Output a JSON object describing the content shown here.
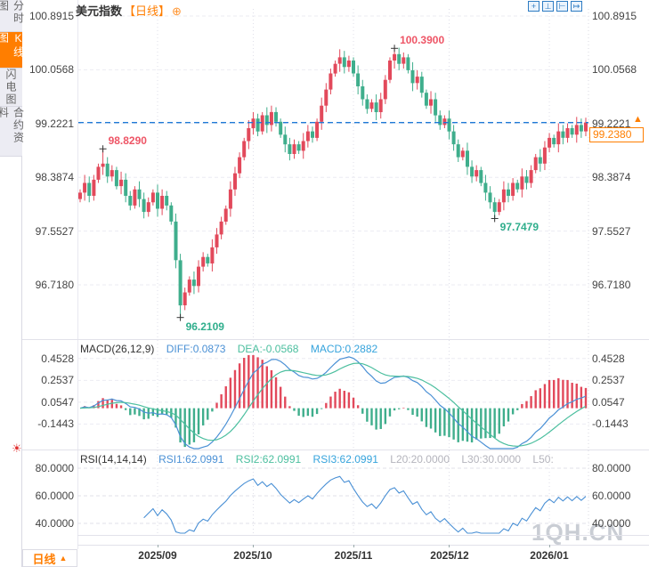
{
  "sidebar": {
    "items": [
      {
        "label": "分时图",
        "selected": false
      },
      {
        "label": "K线图",
        "selected": true
      },
      {
        "label": "闪电图",
        "selected": false
      },
      {
        "label": "合约资料",
        "selected": false
      }
    ]
  },
  "header": {
    "symbol": "美元指数",
    "timeframe_tag": "【日线】",
    "plus_icon": "⊕",
    "toolbar_icons": [
      {
        "name": "crosshair-icon",
        "glyph": "+"
      },
      {
        "name": "axis-scale-icon",
        "glyph": "⊥"
      },
      {
        "name": "indicator-panel-icon",
        "glyph": "⊢"
      },
      {
        "name": "exit-icon",
        "glyph": "↦"
      }
    ]
  },
  "price_axis": {
    "labels": [
      "100.8915",
      "100.0568",
      "99.2221",
      "98.3874",
      "97.5527",
      "96.7180"
    ]
  },
  "current_price": {
    "boxed_value": "99.2380",
    "arrow": "▲"
  },
  "macd": {
    "title": "MACD(26,12,9)",
    "diff_label": "DIFF:0.0873",
    "dea_label": "DEA:-0.0568",
    "macd_label": "MACD:0.2882",
    "axis_labels": [
      "0.4528",
      "0.2537",
      "0.0547",
      "-0.1443"
    ]
  },
  "rsi": {
    "title": "RSI(14,14,14)",
    "rsi1_label": "RSI1:62.0991",
    "rsi2_label": "RSI2:62.0991",
    "rsi3_label": "RSI3:62.0991",
    "l20_label": "L20:20.0000",
    "l30_label": "L30:30.0000",
    "l50_label": "L50:",
    "axis_labels": [
      "80.0000",
      "60.0000",
      "40.0000"
    ]
  },
  "x_axis": {
    "labels": [
      "2025/09",
      "2025/10",
      "2025/11",
      "2025/12",
      "2026/01"
    ]
  },
  "footer": {
    "timeframe": "日线",
    "caret": "▲"
  },
  "watermark": "1QH.CN",
  "colors": {
    "up": "#e2495b",
    "down": "#3fae8c",
    "accent_orange": "#ff7e00",
    "dashed_price_line": "#1f7ad6",
    "diff_line": "#4a90d5",
    "dea_line": "#4cbf9f",
    "annotation_high": "#ee5566",
    "annotation_low": "#2fae8c"
  },
  "chart_data": {
    "type": "candlestick",
    "symbol": "美元指数",
    "interval": "日线",
    "price_panel": {
      "ylim": [
        95.89,
        101.0
      ],
      "grid_values": [
        100.8915,
        100.0568,
        99.2221,
        98.3874,
        97.5527,
        96.718
      ],
      "current_price": 99.238,
      "first_open": 98.05,
      "closes": [
        98.15,
        98.3,
        98.1,
        98.35,
        98.55,
        98.6,
        98.4,
        98.5,
        98.25,
        98.35,
        98.1,
        97.95,
        98.2,
        98.05,
        97.85,
        98.0,
        98.15,
        97.9,
        98.1,
        97.95,
        97.7,
        97.1,
        96.4,
        96.6,
        96.8,
        96.7,
        97.0,
        97.15,
        97.05,
        97.3,
        97.5,
        97.7,
        97.9,
        98.2,
        98.45,
        98.7,
        98.95,
        99.15,
        99.3,
        99.1,
        99.35,
        99.2,
        99.4,
        99.25,
        99.05,
        98.9,
        98.75,
        98.9,
        98.8,
        98.95,
        99.1,
        99.0,
        99.25,
        99.5,
        99.75,
        100.0,
        100.15,
        100.25,
        100.1,
        100.2,
        100.0,
        99.8,
        99.6,
        99.45,
        99.55,
        99.4,
        99.6,
        99.9,
        100.2,
        100.3,
        100.15,
        100.25,
        100.05,
        99.85,
        99.95,
        99.7,
        99.5,
        99.6,
        99.35,
        99.2,
        99.3,
        99.1,
        98.9,
        98.7,
        98.8,
        98.55,
        98.4,
        98.5,
        98.3,
        98.15,
        98.0,
        97.85,
        98.0,
        98.2,
        98.1,
        98.3,
        98.2,
        98.4,
        98.3,
        98.5,
        98.7,
        98.6,
        98.85,
        99.0,
        98.9,
        99.1,
        99.0,
        99.15,
        99.05,
        99.2,
        99.1,
        99.238
      ],
      "overrides": {
        "5": {
          "high": 98.829
        },
        "22": {
          "low": 96.2109
        },
        "69": {
          "high": 100.39
        },
        "91": {
          "low": 97.7479
        }
      },
      "marked_points": [
        {
          "index": 5,
          "type": "high",
          "value": 98.829,
          "label": "98.8290"
        },
        {
          "index": 69,
          "type": "high",
          "value": 100.39,
          "label": "100.3900"
        },
        {
          "index": 22,
          "type": "low",
          "value": 96.2109,
          "label": "96.2109"
        },
        {
          "index": 91,
          "type": "low",
          "value": 97.7479,
          "label": "97.7479"
        }
      ]
    },
    "macd_panel": {
      "params": [
        26,
        12,
        9
      ],
      "diff": 0.0873,
      "dea": -0.0568,
      "macd": 0.2882,
      "grid_values": [
        0.4528,
        0.2537,
        0.0547,
        -0.1443
      ]
    },
    "rsi_panel": {
      "params": [
        14,
        14,
        14
      ],
      "rsi1": 62.0991,
      "rsi2": 62.0991,
      "rsi3": 62.0991,
      "grid_values": [
        80.0,
        60.0,
        40.0
      ]
    },
    "x_ticks": [
      {
        "label": "2025/09",
        "index": 17
      },
      {
        "label": "2025/10",
        "index": 38
      },
      {
        "label": "2025/11",
        "index": 60
      },
      {
        "label": "2025/12",
        "index": 81
      },
      {
        "label": "2026/01",
        "index": 103
      }
    ]
  }
}
